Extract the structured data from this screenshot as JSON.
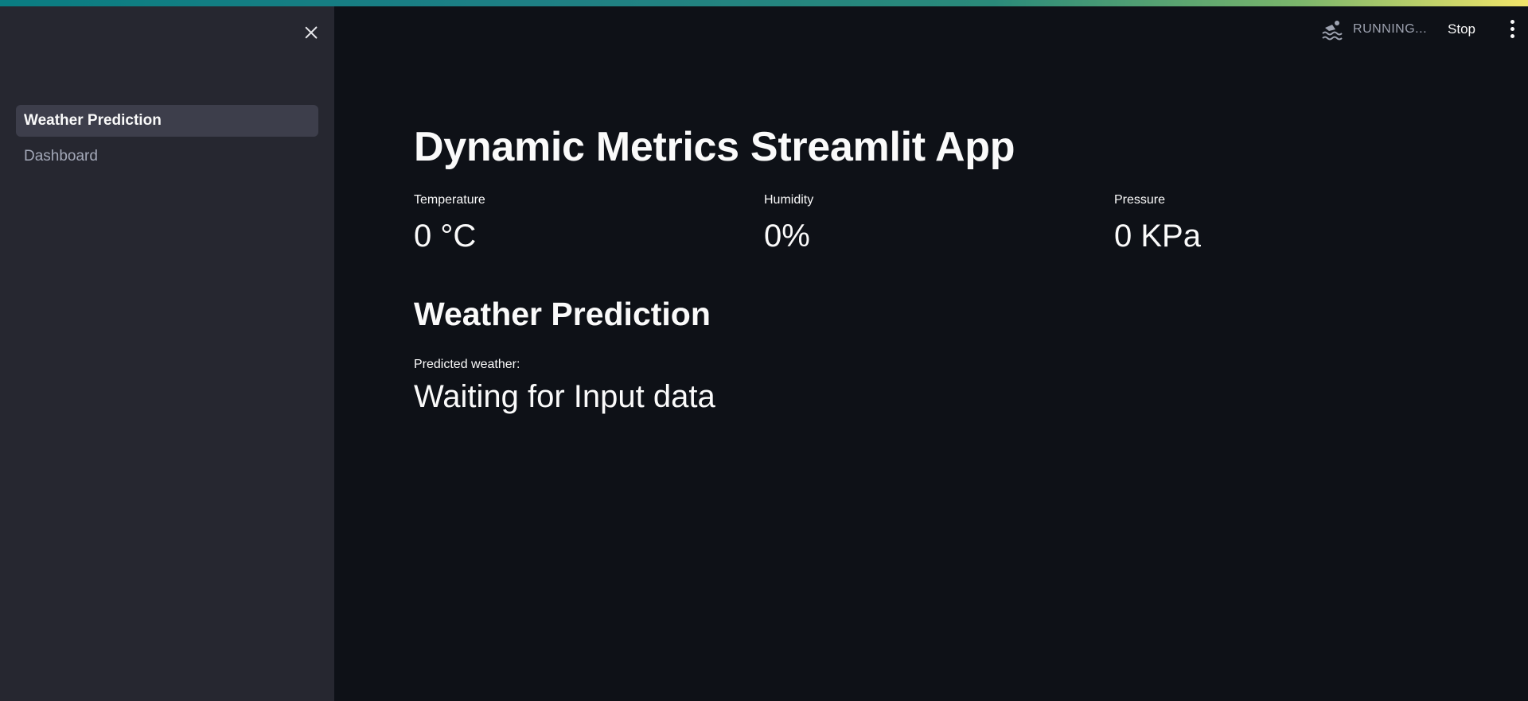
{
  "sidebar": {
    "close_icon": "close-icon",
    "nav_items": [
      {
        "label": "Weather Prediction",
        "active": true
      },
      {
        "label": "Dashboard",
        "active": false
      }
    ]
  },
  "header": {
    "status_icon": "swimmer-running-icon",
    "status_text": "RUNNING...",
    "stop_label": "Stop",
    "menu_icon": "kebab-menu-icon"
  },
  "main": {
    "title": "Dynamic Metrics Streamlit App",
    "metrics": [
      {
        "label": "Temperature",
        "value": "0 °C"
      },
      {
        "label": "Humidity",
        "value": "0%"
      },
      {
        "label": "Pressure",
        "value": "0 KPa"
      }
    ],
    "prediction": {
      "heading": "Weather Prediction",
      "label": "Predicted weather:",
      "value": "Waiting for Input data"
    }
  },
  "colors": {
    "app_background": "#0e1117",
    "sidebar_background": "#262730",
    "active_nav_background": "#3d3e4b",
    "text": "#fafafa",
    "muted_text": "#a3a8b8"
  }
}
